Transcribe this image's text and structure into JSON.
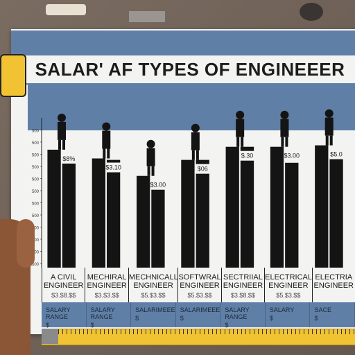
{
  "chart_data": {
    "type": "bar",
    "title": "SALAR' AF TYPES OF ENGINEEER",
    "categories": [
      "A CIVIL ENGINEER",
      "MECHIRAL ENGINEER",
      "MECHNICALL ENGINEER",
      "SOFTWRAL ENGINEER",
      "SECTRIIAL ENGINEER",
      "ELECTRICAL ENGINEER",
      "ELECTRIA ENGINEER"
    ],
    "sublabels": [
      "$3.$8.$$",
      "$3.$3.$$",
      "$5.$3.$$",
      "$5.$3.$$",
      "$3.$8.$$",
      "$5.$3.$$",
      ""
    ],
    "bar_labels": [
      "$8%",
      "$3.10",
      "$3.00",
      "$06",
      "$.30",
      "$3.00",
      "$5.0"
    ],
    "series": [
      {
        "values": [
          81,
          75,
          63,
          74,
          83,
          83,
          84
        ]
      },
      {
        "values": [
          76,
          74,
          60,
          74,
          83,
          72,
          76
        ]
      }
    ],
    "y_ticks": [
      "500",
      "500",
      "500",
      "500",
      "500",
      "500",
      "500",
      "500",
      "500",
      "500",
      "500",
      "500"
    ],
    "ylim": [
      0,
      100
    ],
    "footer": [
      "SALARY RANGE",
      "SALARY RANGE",
      "SALARIMEEE",
      "SALARIMEEE",
      "SALARY RANGE",
      "SALARY",
      "SACE"
    ],
    "footer_icon": "$",
    "grid": false
  },
  "colors": {
    "bar": "#141414",
    "band": "#5f7fa6",
    "poster": "#f3f3f1",
    "tape": "#f1c232"
  },
  "icons": [
    "microscope-icon",
    "robot-arm-icon",
    "scales-icon",
    "computer-icon",
    "worker-icon",
    "control-panel-icon",
    "surveyor-icon"
  ]
}
